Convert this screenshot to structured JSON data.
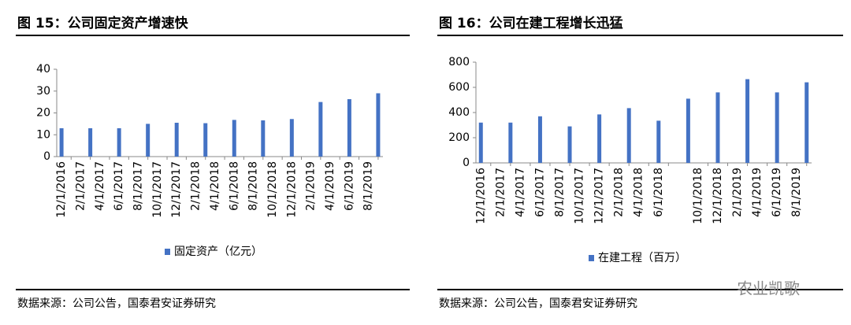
{
  "chart_data": [
    {
      "type": "bar",
      "title": "图 15：公司固定资产增速快",
      "categories": [
        "12/1/2016",
        null,
        "2/1/2017",
        null,
        "4/1/2017",
        null,
        "6/1/2017",
        null,
        "8/1/2017",
        null,
        "10/1/2017",
        null,
        "12/1/2017",
        null,
        "2/1/2018",
        null,
        "4/1/2018",
        null,
        "6/1/2018",
        null,
        "8/1/2018",
        null,
        "10/1/2018",
        null,
        "12/1/2018",
        null,
        "2/1/2019",
        null,
        "4/1/2019",
        null,
        "6/1/2019",
        null,
        "8/1/2019",
        null
      ],
      "series": [
        {
          "name": "固定资产（亿元）",
          "color": "#4472c4",
          "values": [
            13,
            null,
            null,
            13,
            null,
            null,
            13,
            null,
            null,
            15,
            null,
            null,
            15.5,
            null,
            null,
            15.3,
            null,
            null,
            16.8,
            null,
            null,
            16.6,
            null,
            null,
            17.2,
            null,
            null,
            25,
            null,
            null,
            26.3,
            null,
            null,
            29
          ]
        }
      ],
      "ylim": [
        0,
        40
      ],
      "yticks": [
        0,
        10,
        20,
        30,
        40
      ],
      "source": "数据来源：公司公告，国泰君安证券研究"
    },
    {
      "type": "bar",
      "title": "图 16：公司在建工程增长迅猛",
      "categories": [
        "12/1/2016",
        null,
        "2/1/2017",
        null,
        "4/1/2017",
        null,
        "6/1/2017",
        null,
        "8/1/2017",
        null,
        "10/1/2017",
        null,
        "12/1/2017",
        null,
        "2/1/2018",
        null,
        "4/1/2018",
        null,
        "6/1/2018",
        null,
        null,
        null,
        "10/1/2018",
        null,
        "12/1/2018",
        null,
        "2/1/2019",
        null,
        "4/1/2019",
        null,
        "6/1/2019",
        null,
        "8/1/2019",
        null
      ],
      "series": [
        {
          "name": "在建工程（百万）",
          "color": "#4472c4",
          "values": [
            320,
            null,
            null,
            320,
            null,
            null,
            370,
            null,
            null,
            290,
            null,
            null,
            385,
            null,
            null,
            435,
            null,
            null,
            335,
            null,
            null,
            510,
            null,
            null,
            560,
            null,
            null,
            665,
            null,
            null,
            560,
            null,
            null,
            640
          ]
        }
      ],
      "ylim": [
        0,
        800
      ],
      "yticks": [
        0,
        200,
        400,
        600,
        800
      ],
      "source": "数据来源：公司公告，国泰君安证券研究"
    }
  ],
  "watermark": "农业凯歌"
}
